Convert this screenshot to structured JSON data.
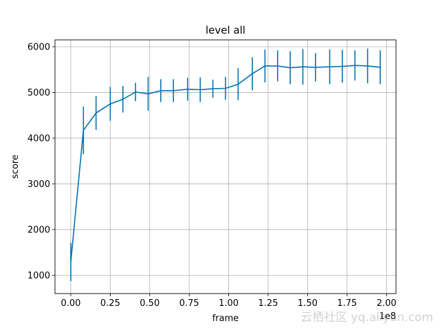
{
  "chart_data": {
    "type": "line",
    "title": "level all",
    "xlabel": "frame",
    "ylabel": "score",
    "x_offset_label": "1e8",
    "xlim": [
      -0.1,
      2.06
    ],
    "ylim": [
      600,
      6150
    ],
    "grid": true,
    "x_ticks": [
      0.0,
      0.25,
      0.5,
      0.75,
      1.0,
      1.25,
      1.5,
      1.75,
      2.0
    ],
    "x_tick_labels": [
      "0.00",
      "0.25",
      "0.50",
      "0.75",
      "1.00",
      "1.25",
      "1.50",
      "1.75",
      "2.00"
    ],
    "y_ticks": [
      1000,
      2000,
      3000,
      4000,
      5000,
      6000
    ],
    "y_tick_labels": [
      "1000",
      "2000",
      "3000",
      "4000",
      "5000",
      "6000"
    ],
    "series": [
      {
        "color": "#0072B2",
        "x": [
          0.0,
          0.08,
          0.16,
          0.25,
          0.33,
          0.41,
          0.49,
          0.57,
          0.65,
          0.74,
          0.82,
          0.9,
          0.98,
          1.06,
          1.15,
          1.23,
          1.31,
          1.39,
          1.47,
          1.55,
          1.64,
          1.72,
          1.8,
          1.88,
          1.96
        ],
        "y": [
          1290,
          4170,
          4550,
          4750,
          4850,
          5010,
          4970,
          5040,
          5040,
          5070,
          5060,
          5080,
          5090,
          5180,
          5410,
          5580,
          5580,
          5540,
          5560,
          5550,
          5560,
          5570,
          5590,
          5580,
          5550
        ],
        "err": [
          420,
          520,
          370,
          370,
          290,
          200,
          370,
          250,
          250,
          250,
          270,
          200,
          250,
          350,
          360,
          360,
          340,
          360,
          390,
          310,
          380,
          360,
          330,
          380,
          370
        ]
      }
    ]
  },
  "watermark": "云栖社区 yq.aliyun.com"
}
